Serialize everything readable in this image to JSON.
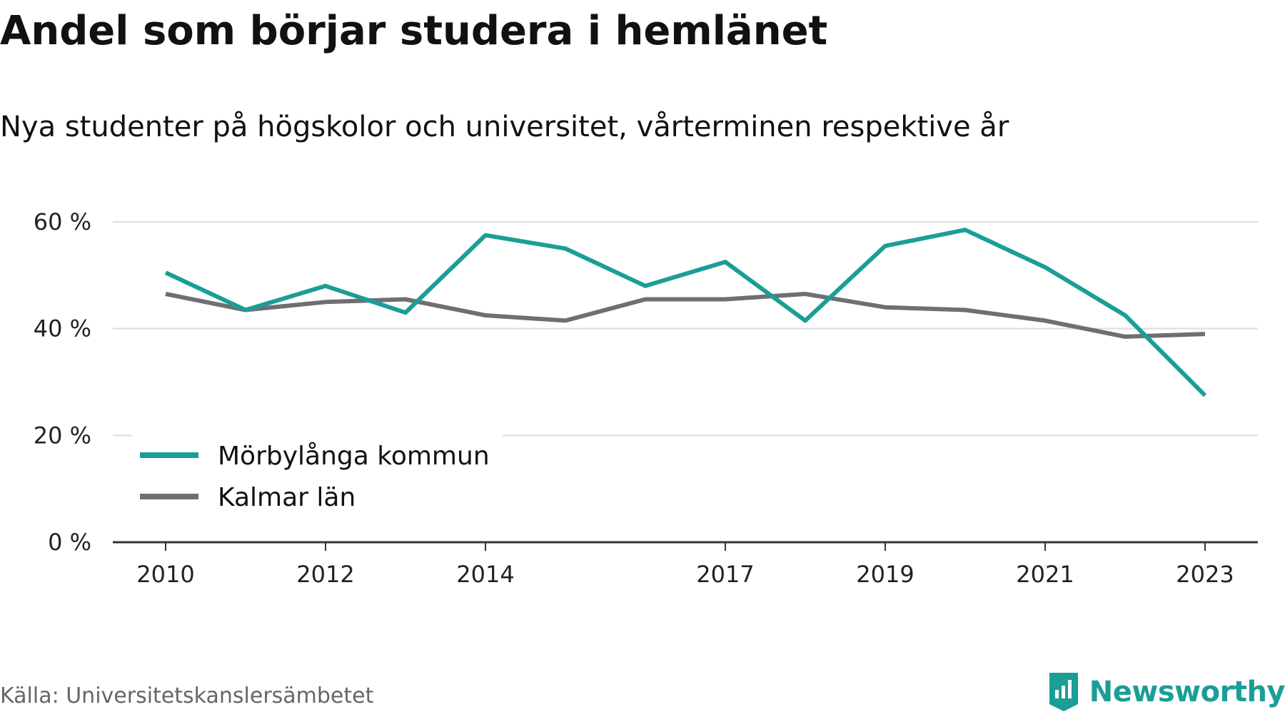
{
  "title": "Andel som börjar studera i hemlänet",
  "subtitle": "Nya studenter på högskolor och universitet, vårterminen respektive år",
  "source": "Källa: Universitetskanslersämbetet",
  "brand": {
    "name": "Newsworthy",
    "icon": "newsworthy-chart-logo-icon",
    "color": "#1a9e96"
  },
  "chart_data": {
    "type": "line",
    "x": [
      2010,
      2011,
      2012,
      2013,
      2014,
      2015,
      2016,
      2017,
      2018,
      2019,
      2020,
      2021,
      2022,
      2023
    ],
    "x_ticks": [
      2010,
      2012,
      2014,
      2017,
      2019,
      2021,
      2023
    ],
    "y_ticks": [
      0,
      20,
      40,
      60
    ],
    "y_tick_labels": [
      "0 %",
      "20 %",
      "40 %",
      "60 %"
    ],
    "ylim": [
      0,
      60
    ],
    "grid": true,
    "legend_position": "bottom-left",
    "series": [
      {
        "name": "Mörbylånga kommun",
        "color": "#1a9e96",
        "values": [
          50.5,
          43.5,
          48,
          43,
          57.5,
          55,
          48,
          52.5,
          41.5,
          55.5,
          58.5,
          51.5,
          42.5,
          27.5
        ]
      },
      {
        "name": "Kalmar län",
        "color": "#6e6e73",
        "values": [
          46.5,
          43.5,
          45,
          45.5,
          42.5,
          41.5,
          45.5,
          45.5,
          46.5,
          44,
          43.5,
          41.5,
          38.5,
          39
        ]
      }
    ]
  }
}
